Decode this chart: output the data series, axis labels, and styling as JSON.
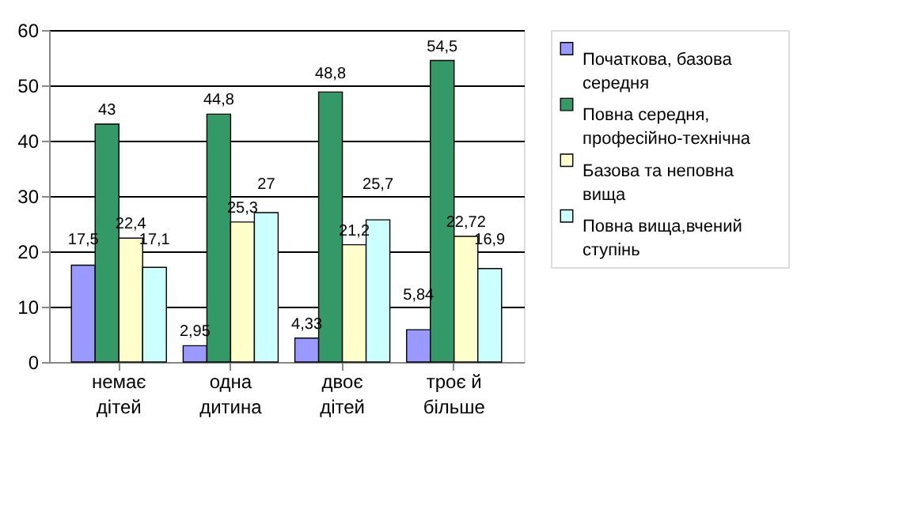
{
  "chart_data": {
    "type": "bar",
    "categories": [
      "немає дітей",
      "одна дитина",
      "двоє дітей",
      "троє й більше"
    ],
    "series": [
      {
        "name": "Початкова, базова середня",
        "color": "#9999ff",
        "values": [
          17.5,
          2.95,
          4.33,
          5.84
        ],
        "value_labels": [
          "17,5",
          "2,95",
          "4,33",
          "5,84"
        ]
      },
      {
        "name": "Повна середня, професійно-технічна",
        "color": "#339966",
        "values": [
          43,
          44.8,
          48.8,
          54.5
        ],
        "value_labels": [
          "43",
          "44,8",
          "48,8",
          "54,5"
        ]
      },
      {
        "name": "Базова та неповна вища",
        "color": "#ffffcc",
        "values": [
          22.4,
          25.3,
          21.2,
          22.72
        ],
        "value_labels": [
          "22,4",
          "25,3",
          "21,2",
          "22,72"
        ]
      },
      {
        "name": "Повна вища,вчений ступінь",
        "color": "#ccffff",
        "values": [
          17.1,
          27,
          25.7,
          16.9
        ],
        "value_labels": [
          "17,1",
          "27",
          "25,7",
          "16,9"
        ]
      }
    ],
    "ylim": [
      0,
      60
    ],
    "yticks": [
      0,
      10,
      20,
      30,
      40,
      50,
      60
    ],
    "grid": "y",
    "legend": "right"
  }
}
